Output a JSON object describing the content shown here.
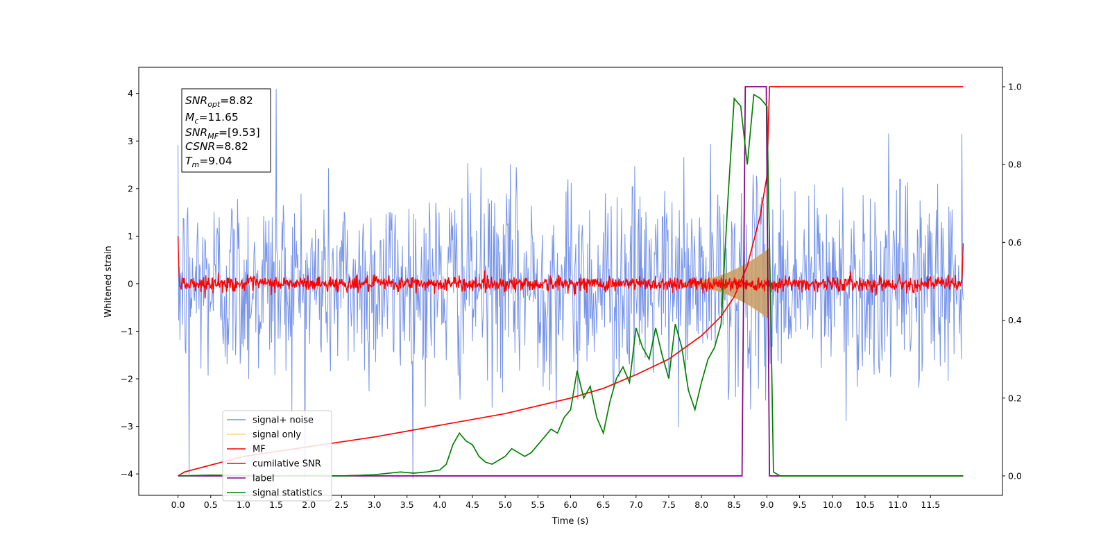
{
  "chart_data": {
    "type": "line",
    "xlabel": "Time (s)",
    "ylabel_left": "Whitened strain",
    "ylabel_right": "",
    "xlim": [
      -0.6,
      12.6
    ],
    "ylim_left": [
      -4.45,
      4.55
    ],
    "ylim_right": [
      -0.05,
      1.05
    ],
    "x_ticks": [
      0.0,
      0.5,
      1.0,
      1.5,
      2.0,
      2.5,
      3.0,
      3.5,
      4.0,
      4.5,
      5.0,
      5.5,
      6.0,
      6.5,
      7.0,
      7.5,
      8.0,
      8.5,
      9.0,
      9.5,
      10.0,
      10.5,
      11.0,
      11.5
    ],
    "x_tick_labels": [
      "0.0",
      "0.5",
      "1.0",
      "1.5",
      "2.0",
      "2.5",
      "3.0",
      "3.5",
      "4.0",
      "4.5",
      "5.0",
      "5.5",
      "6.0",
      "6.5",
      "7.0",
      "7.5",
      "8.0",
      "8.5",
      "9.0",
      "9.5",
      "10.0",
      "10.5",
      "11.0",
      "11.5"
    ],
    "y_ticks_left": [
      -4,
      -3,
      -2,
      -1,
      0,
      1,
      2,
      3,
      4
    ],
    "y_tick_labels_left": [
      "−4",
      "−3",
      "−2",
      "−1",
      "0",
      "1",
      "2",
      "3",
      "4"
    ],
    "y_ticks_right": [
      0.0,
      0.2,
      0.4,
      0.6,
      0.8,
      1.0
    ],
    "y_tick_labels_right": [
      "0.0",
      "0.2",
      "0.4",
      "0.6",
      "0.8",
      "1.0"
    ],
    "grid": false,
    "legend_position": "lower-left",
    "series": [
      {
        "name": "signal+ noise",
        "axis": "left",
        "color": "#4169e1",
        "description": "whitened noise, amplitude ~N(0,1), from 0 to 12 s"
      },
      {
        "name": "signal only",
        "axis": "left",
        "color": "#ffa500",
        "chirp_peak_time": 9.04,
        "chirp_peak_amplitude": 0.75
      },
      {
        "name": "MF",
        "axis": "left",
        "color": "#ff0000",
        "description": "matched-filter output, amplitude ~0.1"
      },
      {
        "name": "cumilative SNR",
        "axis": "right",
        "color": "#ff0000",
        "x": [
          0.0,
          0.1,
          1.0,
          2.0,
          3.0,
          4.0,
          5.0,
          6.0,
          6.5,
          7.0,
          7.5,
          8.0,
          8.3,
          8.5,
          8.7,
          8.9,
          9.0,
          9.04,
          10.0,
          11.0,
          12.0
        ],
        "y": [
          0.0,
          0.01,
          0.05,
          0.075,
          0.1,
          0.13,
          0.16,
          0.2,
          0.225,
          0.26,
          0.3,
          0.36,
          0.41,
          0.46,
          0.54,
          0.67,
          0.77,
          1.0,
          1.0,
          1.0,
          1.0
        ]
      },
      {
        "name": "label",
        "axis": "right",
        "color": "#800080",
        "x": [
          0.0,
          8.62,
          8.67,
          8.99,
          9.04,
          12.0
        ],
        "y": [
          0.0,
          0.0,
          1.0,
          1.0,
          0.0,
          0.0
        ]
      },
      {
        "name": "signal statistics",
        "axis": "right",
        "color": "#008000",
        "x": [
          0.0,
          0.5,
          1.0,
          1.5,
          2.0,
          2.5,
          3.0,
          3.4,
          3.6,
          3.8,
          4.0,
          4.1,
          4.2,
          4.3,
          4.4,
          4.5,
          4.6,
          4.7,
          4.8,
          4.9,
          5.0,
          5.1,
          5.2,
          5.3,
          5.4,
          5.5,
          5.6,
          5.7,
          5.8,
          5.9,
          6.0,
          6.1,
          6.2,
          6.3,
          6.4,
          6.5,
          6.6,
          6.7,
          6.8,
          6.9,
          7.0,
          7.1,
          7.2,
          7.3,
          7.4,
          7.5,
          7.6,
          7.7,
          7.8,
          7.9,
          8.0,
          8.1,
          8.2,
          8.3,
          8.4,
          8.5,
          8.6,
          8.7,
          8.8,
          8.9,
          9.0,
          9.05,
          9.1,
          9.2,
          10.0,
          11.0,
          12.0
        ],
        "y": [
          0.0,
          0.002,
          0.001,
          0.0,
          0.001,
          0.0,
          0.003,
          0.01,
          0.007,
          0.01,
          0.015,
          0.03,
          0.08,
          0.11,
          0.09,
          0.08,
          0.05,
          0.035,
          0.03,
          0.04,
          0.05,
          0.07,
          0.06,
          0.05,
          0.06,
          0.08,
          0.1,
          0.12,
          0.11,
          0.15,
          0.17,
          0.27,
          0.2,
          0.23,
          0.15,
          0.11,
          0.19,
          0.25,
          0.28,
          0.24,
          0.38,
          0.33,
          0.3,
          0.38,
          0.31,
          0.25,
          0.39,
          0.33,
          0.22,
          0.17,
          0.24,
          0.3,
          0.33,
          0.39,
          0.7,
          0.97,
          0.95,
          0.8,
          0.98,
          0.97,
          0.95,
          0.5,
          0.01,
          0.0,
          0.0,
          0.0,
          0.0
        ]
      }
    ]
  },
  "info_box": {
    "snr_opt_label": "SNR",
    "snr_opt_sub": "opt",
    "snr_opt_value": "=8.82",
    "mc_label": "M",
    "mc_sub": "c",
    "mc_value": "=11.65",
    "snr_mf_label": "SNR",
    "snr_mf_sub": "MF",
    "snr_mf_value": "=[9.53]",
    "csnr_label": "CSNR",
    "csnr_value": "=8.82",
    "tm_label": "T",
    "tm_sub": "m",
    "tm_value": "=9.04"
  }
}
